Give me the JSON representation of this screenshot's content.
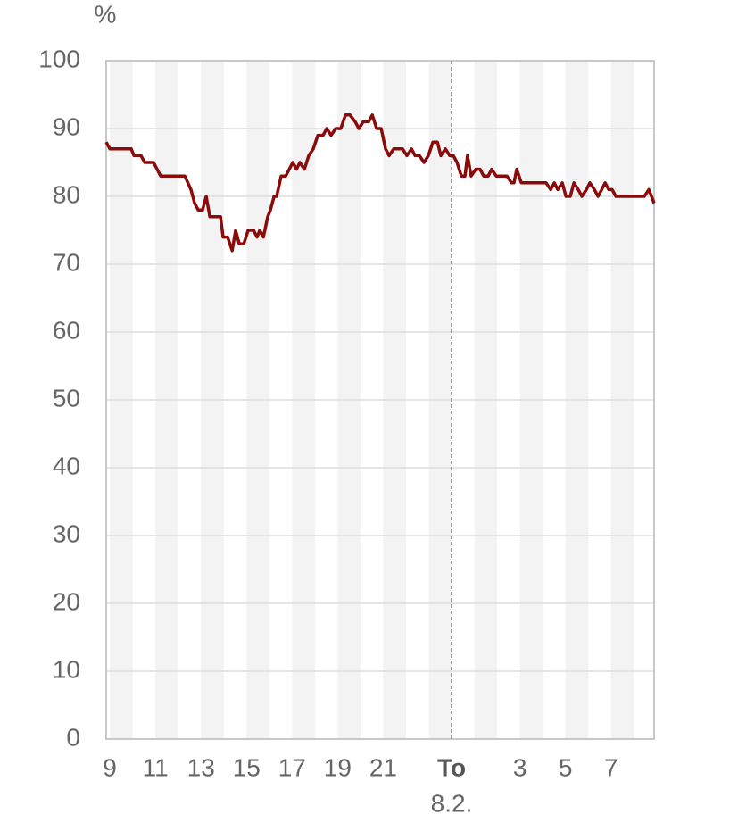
{
  "chart_data": {
    "type": "line",
    "y_label": "%",
    "xlim": [
      8.84,
      32.89
    ],
    "ylim": [
      0,
      100
    ],
    "yticks": [
      0,
      10,
      20,
      30,
      40,
      50,
      60,
      70,
      80,
      90,
      100
    ],
    "xticks": [
      9,
      11,
      13,
      15,
      17,
      19,
      21,
      {
        "value": 24,
        "label": "To"
      },
      {
        "value": 27,
        "label": "3"
      },
      {
        "value": 29,
        "label": "5"
      },
      {
        "value": 31,
        "label": "7"
      }
    ],
    "today_marker": {
      "x": 24,
      "date": "8.2."
    },
    "grid": true,
    "series": [
      {
        "color": "#8b0a0a",
        "x": [
          8.84,
          9.0,
          9.94,
          10.06,
          10.37,
          10.53,
          10.92,
          11.23,
          12.29,
          12.56,
          12.72,
          12.88,
          13.07,
          13.23,
          13.39,
          13.86,
          13.97,
          14.17,
          14.37,
          14.52,
          14.68,
          14.88,
          15.07,
          15.31,
          15.46,
          15.58,
          15.74,
          15.93,
          16.05,
          16.21,
          16.32,
          16.52,
          16.72,
          17.03,
          17.19,
          17.34,
          17.54,
          17.73,
          17.93,
          18.13,
          18.36,
          18.52,
          18.71,
          18.91,
          19.14,
          19.34,
          19.54,
          19.77,
          19.93,
          20.12,
          20.36,
          20.52,
          20.71,
          20.91,
          21.1,
          21.26,
          21.46,
          21.85,
          22.04,
          22.24,
          22.4,
          22.59,
          22.79,
          22.98,
          23.18,
          23.38,
          23.53,
          23.73,
          23.92,
          24.08,
          24.24,
          24.43,
          24.59,
          24.7,
          24.86,
          25.06,
          25.25,
          25.41,
          25.61,
          25.76,
          25.96,
          26.43,
          26.63,
          26.74,
          26.86,
          27.06,
          28.15,
          28.35,
          28.51,
          28.66,
          28.86,
          29.02,
          29.21,
          29.37,
          29.56,
          29.72,
          29.92,
          30.07,
          30.27,
          30.43,
          30.59,
          30.74,
          30.9,
          31.05,
          31.21,
          32.46,
          32.66,
          32.89
        ],
        "values": [
          88,
          87,
          87,
          86,
          86,
          85,
          85,
          83,
          83,
          81,
          79,
          78,
          78,
          80,
          77,
          77,
          74,
          74,
          72,
          75,
          73,
          73,
          75,
          75,
          74,
          75,
          74,
          77,
          78,
          80,
          80,
          83,
          83,
          85,
          84,
          85,
          84,
          86,
          87,
          89,
          89,
          90,
          89,
          90,
          90,
          92,
          92,
          91,
          90,
          91,
          91,
          92,
          90,
          90,
          87,
          86,
          87,
          87,
          86,
          87,
          86,
          86,
          85,
          86,
          88,
          88,
          86,
          87,
          86,
          86,
          85,
          83,
          83,
          86,
          83,
          84,
          84,
          83,
          83,
          84,
          83,
          83,
          82,
          82,
          84,
          82,
          82,
          81,
          82,
          81,
          82,
          80,
          80,
          82,
          81,
          80,
          81,
          82,
          81,
          80,
          81,
          82,
          81,
          81,
          80,
          80,
          81,
          79
        ]
      }
    ]
  }
}
